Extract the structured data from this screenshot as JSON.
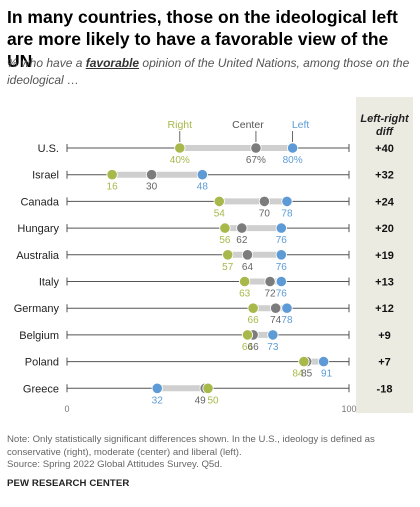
{
  "title": "In many countries, those on the ideological left are more likely to have a favorable view of the UN",
  "subtitle": {
    "prefix": "% who have a ",
    "emphasis": "favorable",
    "suffix": " opinion of the United Nations, among those on the ideological …"
  },
  "diff_header": "Left-right diff",
  "note": "Note: Only statistically significant differences shown. In the U.S., ideology is defined as conservative (right), moderate (center) and liberal (left).",
  "source": "Source: Spring 2022 Global Attitudes Survey. Q5d.",
  "brand": "PEW RESEARCH CENTER",
  "colors": {
    "right": "#a8b84a",
    "center": "#7c7c7c",
    "left": "#5e9bd6",
    "track": "#cfcfcf",
    "axis": "#555555"
  },
  "chart_data": {
    "type": "dot",
    "xlim": [
      0,
      100
    ],
    "x_ticks": [
      "0",
      "100"
    ],
    "series_labels": {
      "right": "Right",
      "center": "Center",
      "left": "Left"
    },
    "rows": [
      {
        "country": "U.S.",
        "right": 40,
        "center": 67,
        "left": 80,
        "diff": "+40",
        "right_label": "40%",
        "center_label": "67%",
        "left_label": "80%"
      },
      {
        "country": "Israel",
        "right": 16,
        "center": 30,
        "left": 48,
        "diff": "+32",
        "right_label": "16",
        "center_label": "30",
        "left_label": "48"
      },
      {
        "country": "Canada",
        "right": 54,
        "center": 70,
        "left": 78,
        "diff": "+24",
        "right_label": "54",
        "center_label": "70",
        "left_label": "78"
      },
      {
        "country": "Hungary",
        "right": 56,
        "center": 62,
        "left": 76,
        "diff": "+20",
        "right_label": "56",
        "center_label": "62",
        "left_label": "76"
      },
      {
        "country": "Australia",
        "right": 57,
        "center": 64,
        "left": 76,
        "diff": "+19",
        "right_label": "57",
        "center_label": "64",
        "left_label": "76"
      },
      {
        "country": "Italy",
        "right": 63,
        "center": 72,
        "left": 76,
        "diff": "+13",
        "right_label": "63",
        "center_label": "72",
        "left_label": "76"
      },
      {
        "country": "Germany",
        "right": 66,
        "center": 74,
        "left": 78,
        "diff": "+12",
        "right_label": "66",
        "center_label": "74",
        "left_label": "78"
      },
      {
        "country": "Belgium",
        "right": 64,
        "center": 66,
        "left": 73,
        "diff": "+9",
        "right_label": "64",
        "center_label": "66",
        "left_label": "73"
      },
      {
        "country": "Poland",
        "right": 84,
        "center": 85,
        "left": 91,
        "diff": "+7",
        "right_label": "84",
        "center_label": "85",
        "left_label": "91"
      },
      {
        "country": "Greece",
        "right": 50,
        "center": 49,
        "left": 32,
        "diff": "-18",
        "right_label": "50",
        "center_label": "49",
        "left_label": "32"
      }
    ]
  }
}
